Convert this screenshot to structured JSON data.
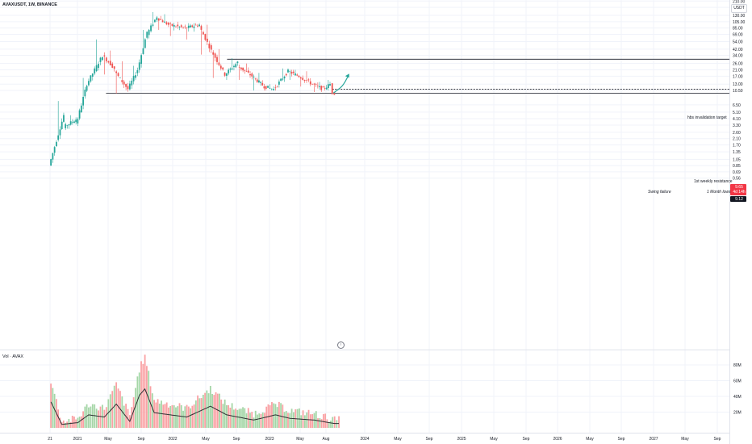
{
  "header": {
    "symbol_title": "AVAXUSDT, 1W, BINANCE",
    "currency_label": "USDT"
  },
  "volume_pane": {
    "label": "Vol · AVAX",
    "axis_ticks": [
      "80M",
      "60M",
      "40M",
      "20M"
    ],
    "axis_values": [
      80,
      60,
      40,
      20
    ]
  },
  "price_axis": {
    "ticks": [
      "210.00",
      "170.00",
      "130.00",
      "105.00",
      "85.00",
      "69.00",
      "54.00",
      "42.00",
      "34.00",
      "26.00",
      "21.00",
      "17.00",
      "13.00",
      "10.50",
      "6.50",
      "5.10",
      "4.10",
      "3.30",
      "2.60",
      "2.10",
      "1.70",
      "1.35",
      "1.05",
      "0.85",
      "0.69",
      "0.56"
    ],
    "values": [
      210,
      170,
      130,
      105,
      85,
      69,
      54,
      42,
      34,
      26,
      21,
      17,
      13,
      10.5,
      6.5,
      5.1,
      4.1,
      3.3,
      2.6,
      2.1,
      1.7,
      1.35,
      1.05,
      0.85,
      0.69,
      0.56
    ],
    "scale": "log"
  },
  "price_tags": {
    "current_price": "9.65",
    "countdown": "4d 14h",
    "low_price": "9.12",
    "current_color": "#f23645",
    "low_color": "#131722"
  },
  "time_axis": {
    "labels": [
      "21",
      "2021",
      "May",
      "Sep",
      "2022",
      "May",
      "Sep",
      "2023",
      "May",
      "Aug",
      "2024",
      "May",
      "Sep",
      "2025",
      "May",
      "Sep",
      "2026",
      "May",
      "Sep",
      "2027",
      "May",
      "Sep"
    ]
  },
  "annotations": {
    "hbs_invalidation": "hbs invalidation target",
    "weekly_resistance": "1st weekly resistance",
    "month_lows": "1 Month lows",
    "swing_failure": "Swing failure"
  },
  "levels": {
    "hbs_invalidation": 30,
    "weekly_resistance": 11,
    "month_lows": 9.6
  },
  "colors": {
    "up": "#26a69a",
    "down": "#ef5350",
    "volume_up": "#a5d6a7",
    "volume_down": "#faa1a4",
    "volume_ma": "#2f3134",
    "projection_arrow": "#26a69a",
    "grid": "#f0f3fa",
    "axis_text": "#131722"
  },
  "info_icon": "info-circle-icon",
  "chart_data": {
    "type": "candlestick",
    "title": "AVAXUSDT, 1W, BINANCE",
    "scale": "log",
    "ylim": [
      0.56,
      210
    ],
    "series": [
      {
        "name": "AVAXUSDT",
        "segments": [
          {
            "date": "2020-09-21",
            "open": 0.85,
            "close": 4.6,
            "high": 7.4,
            "low": 0.85
          },
          {
            "date": "2020-11-15",
            "open": 3.1,
            "close": 4.0,
            "high": 4.6,
            "low": 2.8
          },
          {
            "date": "2020-12-31",
            "open": 3.3,
            "close": 13.0,
            "high": 16.0,
            "low": 3.2
          },
          {
            "date": "2021-02-10",
            "open": 13.0,
            "close": 34.0,
            "high": 58.0,
            "low": 12.0
          },
          {
            "date": "2021-04-10",
            "open": 34.0,
            "close": 22.0,
            "high": 40.0,
            "low": 18.0
          },
          {
            "date": "2021-05-25",
            "open": 20.0,
            "close": 11.0,
            "high": 28.0,
            "low": 9.5
          },
          {
            "date": "2021-07-15",
            "open": 11.0,
            "close": 21.0,
            "high": 24.0,
            "low": 10.5
          },
          {
            "date": "2021-08-20",
            "open": 21.0,
            "close": 75.0,
            "high": 80.0,
            "low": 19.0
          },
          {
            "date": "2021-09-25",
            "open": 70.0,
            "close": 125.0,
            "high": 145.0,
            "low": 60.0
          },
          {
            "date": "2021-11-01",
            "open": 120.0,
            "close": 95.0,
            "high": 135.0,
            "low": 80.0
          },
          {
            "date": "2021-12-15",
            "open": 95.0,
            "close": 85.0,
            "high": 105.0,
            "low": 65.0
          },
          {
            "date": "2022-02-15",
            "open": 85.0,
            "close": 95.0,
            "high": 100.0,
            "low": 58.0
          },
          {
            "date": "2022-04-10",
            "open": 90.0,
            "close": 40.0,
            "high": 95.0,
            "low": 35.0
          },
          {
            "date": "2022-05-25",
            "open": 40.0,
            "close": 18.0,
            "high": 42.0,
            "low": 16.0
          },
          {
            "date": "2022-07-15",
            "open": 18.0,
            "close": 27.0,
            "high": 31.0,
            "low": 15.0
          },
          {
            "date": "2022-09-01",
            "open": 24.0,
            "close": 17.0,
            "high": 26.0,
            "low": 15.0
          },
          {
            "date": "2022-10-25",
            "open": 17.0,
            "close": 12.0,
            "high": 19.0,
            "low": 10.5
          },
          {
            "date": "2022-12-10",
            "open": 12.0,
            "close": 11.0,
            "high": 13.0,
            "low": 10.5
          },
          {
            "date": "2023-01-15",
            "open": 11.0,
            "close": 20.0,
            "high": 22.0,
            "low": 10.5
          },
          {
            "date": "2023-03-10",
            "open": 20.0,
            "close": 17.0,
            "high": 21.0,
            "low": 15.0
          },
          {
            "date": "2023-04-20",
            "open": 17.0,
            "close": 13.0,
            "high": 20.0,
            "low": 12.0
          },
          {
            "date": "2023-06-10",
            "open": 13.0,
            "close": 11.0,
            "high": 14.0,
            "low": 10.0
          },
          {
            "date": "2023-07-20",
            "open": 11.0,
            "close": 13.0,
            "high": 15.0,
            "low": 10.5
          },
          {
            "date": "2023-08-15",
            "open": 13.0,
            "close": 9.8,
            "high": 13.5,
            "low": 9.1
          },
          {
            "date": "2023-08-25",
            "open": 9.8,
            "close": 9.65,
            "high": 10.0,
            "low": 9.12
          }
        ]
      },
      {
        "name": "Vol · AVAX",
        "type": "bar",
        "unit": "M",
        "points": [
          {
            "date": "2020-09-21",
            "value": 60
          },
          {
            "date": "2020-11-01",
            "value": 8
          },
          {
            "date": "2020-12-31",
            "value": 12
          },
          {
            "date": "2021-02-10",
            "value": 30
          },
          {
            "date": "2021-04-10",
            "value": 25
          },
          {
            "date": "2021-05-25",
            "value": 55
          },
          {
            "date": "2021-07-15",
            "value": 15
          },
          {
            "date": "2021-08-20",
            "value": 75
          },
          {
            "date": "2021-09-10",
            "value": 90
          },
          {
            "date": "2021-10-15",
            "value": 35
          },
          {
            "date": "2021-12-15",
            "value": 30
          },
          {
            "date": "2022-02-15",
            "value": 25
          },
          {
            "date": "2022-05-15",
            "value": 50
          },
          {
            "date": "2022-07-15",
            "value": 30
          },
          {
            "date": "2022-10-25",
            "value": 18
          },
          {
            "date": "2023-01-15",
            "value": 30
          },
          {
            "date": "2023-03-10",
            "value": 22
          },
          {
            "date": "2023-06-10",
            "value": 18
          },
          {
            "date": "2023-08-25",
            "value": 10
          }
        ]
      }
    ],
    "levels": [
      {
        "label": "hbs invalidation target",
        "y": 30,
        "start": "2022-07-20"
      },
      {
        "label": "1st weekly resistance",
        "y": 11,
        "start": "2023-08-20",
        "style": "dashed"
      },
      {
        "label": "1 Month lows",
        "y": 9.6,
        "start": "2021-04-20"
      }
    ],
    "projection": [
      {
        "date": "2023-08-25",
        "y": 9.65
      },
      {
        "date": "2023-09-15",
        "y": 11.5
      },
      {
        "date": "2023-09-25",
        "y": 10.8
      },
      {
        "date": "2023-10-20",
        "y": 17.5
      }
    ],
    "xlabel": "",
    "ylabel": ""
  }
}
